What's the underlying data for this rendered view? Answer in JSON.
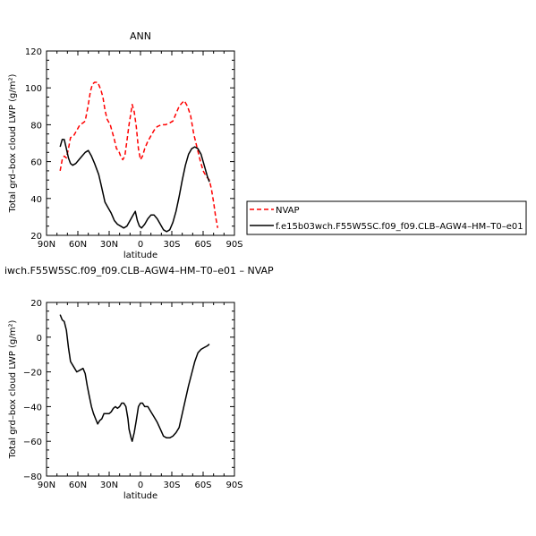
{
  "chart_data": [
    {
      "type": "line",
      "title": "ANN",
      "xlabel": "latitude",
      "ylabel": "Total grd–box cloud LWP (g/m²)",
      "xlim": [
        90,
        -90
      ],
      "ylim": [
        20,
        120
      ],
      "xticks": [
        90,
        60,
        30,
        0,
        -30,
        -60,
        -90
      ],
      "xtick_labels": [
        "90N",
        "60N",
        "30N",
        "0",
        "30S",
        "60S",
        "90S"
      ],
      "yticks": [
        20,
        40,
        60,
        80,
        100,
        120
      ],
      "grid": false,
      "legend_position": "right",
      "series": [
        {
          "name": "NVAP",
          "color": "#ff0000",
          "dash": "dashed",
          "points": [
            [
              77,
              55
            ],
            [
              75,
              61
            ],
            [
              73,
              63
            ],
            [
              71,
              62
            ],
            [
              69,
              67
            ],
            [
              67,
              73
            ],
            [
              64,
              74
            ],
            [
              61,
              77
            ],
            [
              58,
              80
            ],
            [
              55,
              81
            ],
            [
              53,
              82
            ],
            [
              50,
              91
            ],
            [
              48,
              98
            ],
            [
              46,
              102
            ],
            [
              44,
              103
            ],
            [
              41,
              103
            ],
            [
              38,
              99
            ],
            [
              36,
              95
            ],
            [
              34,
              88
            ],
            [
              32,
              83
            ],
            [
              29,
              80
            ],
            [
              27,
              76
            ],
            [
              25,
              72
            ],
            [
              23,
              67
            ],
            [
              21,
              66
            ],
            [
              19,
              63
            ],
            [
              17,
              61
            ],
            [
              15,
              63
            ],
            [
              13,
              71
            ],
            [
              11,
              80
            ],
            [
              9,
              87
            ],
            [
              8,
              91
            ],
            [
              6,
              87
            ],
            [
              4,
              79
            ],
            [
              2,
              67
            ],
            [
              0,
              61
            ],
            [
              -2,
              63
            ],
            [
              -4,
              67
            ],
            [
              -7,
              71
            ],
            [
              -10,
              74
            ],
            [
              -13,
              77
            ],
            [
              -16,
              79
            ],
            [
              -20,
              80
            ],
            [
              -24,
              80
            ],
            [
              -28,
              81
            ],
            [
              -31,
              82
            ],
            [
              -34,
              86
            ],
            [
              -37,
              90
            ],
            [
              -40,
              92
            ],
            [
              -42,
              93
            ],
            [
              -45,
              90
            ],
            [
              -48,
              85
            ],
            [
              -51,
              75
            ],
            [
              -54,
              68
            ],
            [
              -57,
              61
            ],
            [
              -60,
              55
            ],
            [
              -63,
              52
            ],
            [
              -66,
              50
            ],
            [
              -68,
              45
            ],
            [
              -70,
              38
            ],
            [
              -72,
              30
            ],
            [
              -74,
              24
            ]
          ]
        },
        {
          "name": "f.e15b03wch.F55W5SC.f09_f09.CLB–AGW4–HM–T0–e01",
          "color": "#000000",
          "dash": "solid",
          "points": [
            [
              77,
              68
            ],
            [
              75,
              72
            ],
            [
              73,
              72
            ],
            [
              71,
              67
            ],
            [
              69,
              62
            ],
            [
              67,
              59
            ],
            [
              65,
              58
            ],
            [
              62,
              59
            ],
            [
              59,
              61
            ],
            [
              56,
              63
            ],
            [
              53,
              65
            ],
            [
              50,
              66
            ],
            [
              47,
              63
            ],
            [
              44,
              59
            ],
            [
              42,
              56
            ],
            [
              40,
              53
            ],
            [
              38,
              48
            ],
            [
              36,
              43
            ],
            [
              34,
              38
            ],
            [
              31,
              35
            ],
            [
              28,
              32
            ],
            [
              25,
              28
            ],
            [
              22,
              26
            ],
            [
              19,
              25
            ],
            [
              16,
              24
            ],
            [
              13,
              25
            ],
            [
              10,
              28
            ],
            [
              7,
              31
            ],
            [
              5,
              33
            ],
            [
              3,
              28
            ],
            [
              1,
              25
            ],
            [
              -1,
              24
            ],
            [
              -4,
              26
            ],
            [
              -7,
              29
            ],
            [
              -10,
              31
            ],
            [
              -13,
              31
            ],
            [
              -16,
              29
            ],
            [
              -19,
              26
            ],
            [
              -22,
              23
            ],
            [
              -25,
              22
            ],
            [
              -28,
              23
            ],
            [
              -31,
              27
            ],
            [
              -34,
              33
            ],
            [
              -37,
              41
            ],
            [
              -40,
              50
            ],
            [
              -43,
              58
            ],
            [
              -46,
              64
            ],
            [
              -49,
              67
            ],
            [
              -52,
              68
            ],
            [
              -55,
              67
            ],
            [
              -58,
              64
            ],
            [
              -61,
              58
            ],
            [
              -64,
              52
            ],
            [
              -66,
              49
            ]
          ]
        }
      ]
    },
    {
      "type": "line",
      "title": "iwch.F55W5SC.f09_f09.CLB–AGW4–HM–T0–e01 – NVAP",
      "xlabel": "latitude",
      "ylabel": "Total grd–box cloud LWP (g/m²)",
      "xlim": [
        90,
        -90
      ],
      "ylim": [
        -80,
        20
      ],
      "xticks": [
        90,
        60,
        30,
        0,
        -30,
        -60,
        -90
      ],
      "xtick_labels": [
        "90N",
        "60N",
        "30N",
        "0",
        "30S",
        "60S",
        "90S"
      ],
      "yticks": [
        -80,
        -60,
        -40,
        -20,
        0,
        20
      ],
      "grid": false,
      "series": [
        {
          "color": "#000000",
          "dash": "solid",
          "points": [
            [
              77,
              13
            ],
            [
              75,
              10
            ],
            [
              73,
              9
            ],
            [
              71,
              4
            ],
            [
              69,
              -6
            ],
            [
              67,
              -14
            ],
            [
              64,
              -17
            ],
            [
              61,
              -20
            ],
            [
              58,
              -19
            ],
            [
              55,
              -18
            ],
            [
              53,
              -21
            ],
            [
              51,
              -28
            ],
            [
              49,
              -34
            ],
            [
              47,
              -40
            ],
            [
              45,
              -44
            ],
            [
              43,
              -47
            ],
            [
              41,
              -50
            ],
            [
              39,
              -48
            ],
            [
              37,
              -47
            ],
            [
              35,
              -44
            ],
            [
              33,
              -44
            ],
            [
              30,
              -44
            ],
            [
              28,
              -43
            ],
            [
              26,
              -41
            ],
            [
              24,
              -40
            ],
            [
              22,
              -41
            ],
            [
              20,
              -40
            ],
            [
              18,
              -38
            ],
            [
              16,
              -38
            ],
            [
              14,
              -40
            ],
            [
              12,
              -47
            ],
            [
              11,
              -53
            ],
            [
              9,
              -58
            ],
            [
              8,
              -60
            ],
            [
              6,
              -55
            ],
            [
              4,
              -48
            ],
            [
              2,
              -40
            ],
            [
              0,
              -38
            ],
            [
              -2,
              -38
            ],
            [
              -4,
              -40
            ],
            [
              -7,
              -40
            ],
            [
              -10,
              -43
            ],
            [
              -13,
              -46
            ],
            [
              -16,
              -49
            ],
            [
              -19,
              -53
            ],
            [
              -22,
              -57
            ],
            [
              -25,
              -58
            ],
            [
              -28,
              -58
            ],
            [
              -31,
              -57
            ],
            [
              -34,
              -55
            ],
            [
              -37,
              -52
            ],
            [
              -40,
              -44
            ],
            [
              -43,
              -36
            ],
            [
              -46,
              -28
            ],
            [
              -49,
              -21
            ],
            [
              -52,
              -14
            ],
            [
              -55,
              -9
            ],
            [
              -58,
              -7
            ],
            [
              -61,
              -6
            ],
            [
              -64,
              -5
            ],
            [
              -66,
              -4
            ]
          ]
        }
      ]
    }
  ]
}
